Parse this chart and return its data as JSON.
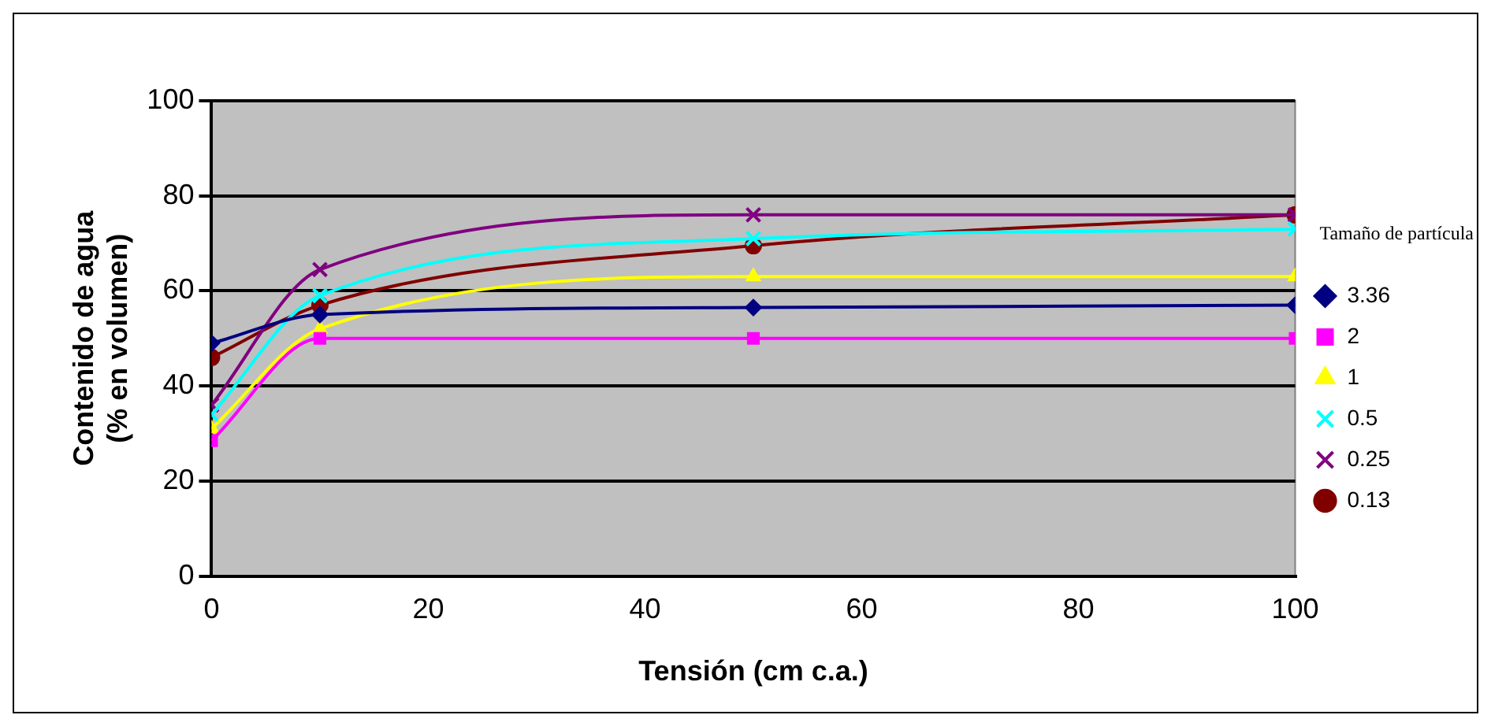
{
  "chart_data": {
    "type": "line",
    "xlabel": "Tensión (cm c.a.)",
    "ylabel": "Contenido de agua\n(% en volumen)",
    "legend_title": "Tamaño de partícula",
    "legend": "right",
    "grid": "y",
    "xlim": [
      0,
      100
    ],
    "xticks": [
      0,
      20,
      40,
      60,
      80,
      100
    ],
    "ylim": [
      0,
      100
    ],
    "yticks": [
      0,
      20,
      40,
      60,
      80,
      100
    ],
    "x": [
      0,
      10,
      50,
      100
    ],
    "series": [
      {
        "name": "3.36",
        "color": "#000080",
        "marker": "diamond",
        "values": [
          49,
          55,
          56.5,
          57
        ]
      },
      {
        "name": "2",
        "color": "#ff00ff",
        "marker": "square",
        "values": [
          28.5,
          50,
          50,
          50
        ]
      },
      {
        "name": "1",
        "color": "#ffff00",
        "marker": "triangle",
        "values": [
          31,
          52,
          63,
          63
        ]
      },
      {
        "name": "0.5",
        "color": "#00ffff",
        "marker": "cross",
        "values": [
          34,
          59,
          71,
          73
        ]
      },
      {
        "name": "0.25",
        "color": "#800080",
        "marker": "cross",
        "values": [
          36,
          64.5,
          76,
          76
        ]
      },
      {
        "name": "0.13",
        "color": "#800000",
        "marker": "circle",
        "values": [
          46,
          57,
          69.5,
          76
        ]
      }
    ]
  }
}
